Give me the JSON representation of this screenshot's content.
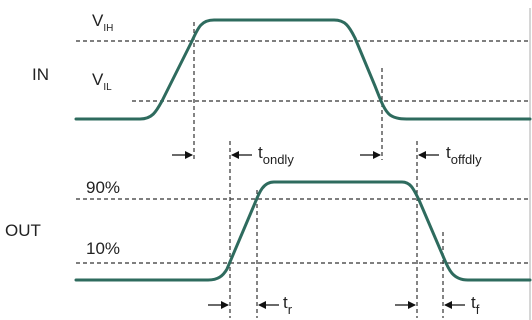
{
  "colors": {
    "waveform": "#2e6b5e",
    "dashed": "#333333",
    "arrow": "#111111",
    "frame": "#c8c8c8",
    "text": "#222222"
  },
  "labels": {
    "in": "IN",
    "out": "OUT",
    "vih_main": "V",
    "vih_sub": "IH",
    "vil_main": "V",
    "vil_sub": "IL",
    "pct90": "90%",
    "pct10": "10%",
    "t_ondly_main": "t",
    "t_ondly_sub": "ondly",
    "t_offdly_main": "t",
    "t_offdly_sub": "offdly",
    "t_r_main": "t",
    "t_r_sub": "r",
    "t_f_main": "t",
    "t_f_sub": "f"
  }
}
